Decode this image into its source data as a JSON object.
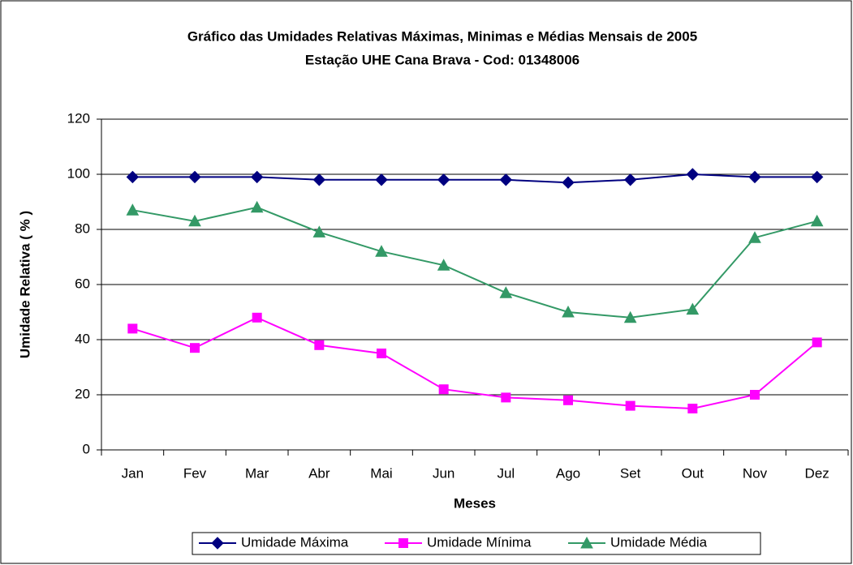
{
  "chart_data": {
    "type": "line",
    "title": "Gráfico das Umidades Relativas Máximas, Minimas e Médias Mensais de 2005",
    "subtitle": "Estação UHE Cana Brava - Cod: 01348006",
    "x_label": "Meses",
    "y_label": "Umidade Relativa ( % )",
    "categories": [
      "Jan",
      "Fev",
      "Mar",
      "Abr",
      "Mai",
      "Jun",
      "Jul",
      "Ago",
      "Set",
      "Out",
      "Nov",
      "Dez"
    ],
    "series": [
      {
        "name": "Umidade Máxima",
        "color": "#000080",
        "marker": "diamond",
        "values": [
          99,
          99,
          99,
          98,
          98,
          98,
          98,
          97,
          98,
          100,
          99,
          99
        ]
      },
      {
        "name": "Umidade Mínima",
        "color": "#ff00ff",
        "marker": "square",
        "values": [
          44,
          37,
          48,
          38,
          35,
          22,
          19,
          18,
          16,
          15,
          20,
          39
        ]
      },
      {
        "name": "Umidade Média",
        "color": "#339966",
        "marker": "triangle",
        "values": [
          87,
          83,
          88,
          79,
          72,
          67,
          57,
          50,
          48,
          51,
          77,
          83
        ]
      }
    ],
    "ylim": [
      0,
      120
    ],
    "yticks": [
      0,
      20,
      40,
      60,
      80,
      100,
      120
    ],
    "grid": true,
    "legend": "bottom"
  }
}
